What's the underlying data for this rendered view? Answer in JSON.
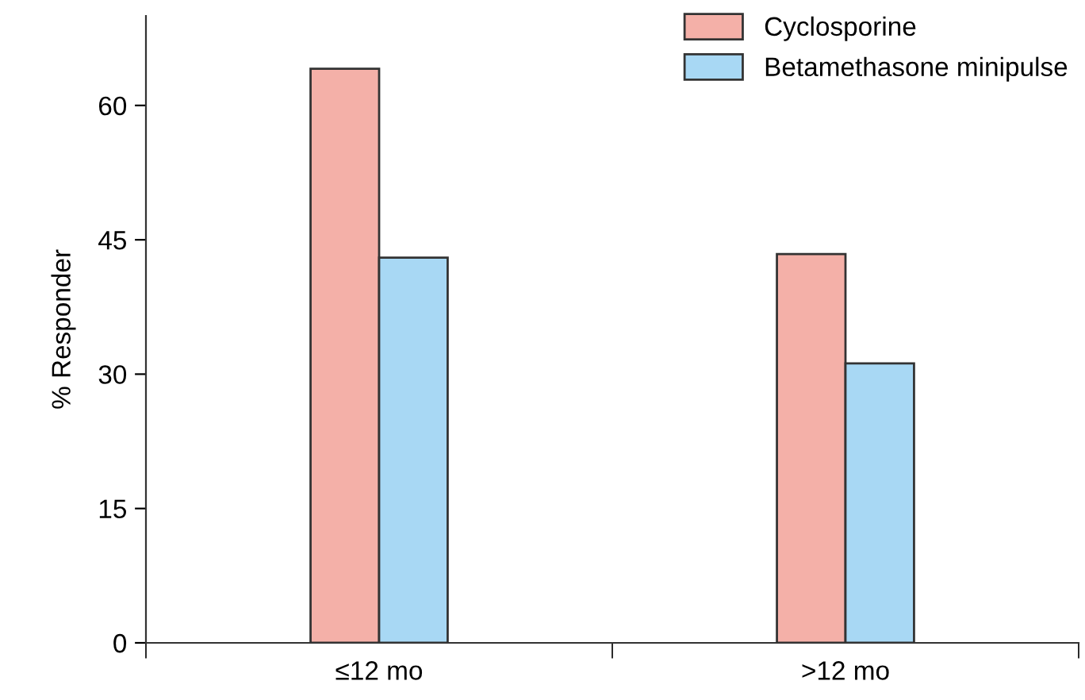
{
  "chart_data": {
    "type": "bar",
    "ylabel": "% Responder",
    "categories": [
      "≤12 mo",
      ">12 mo"
    ],
    "series": [
      {
        "name": "Cyclosporine",
        "color": "#f4b0a8",
        "values": [
          64.1,
          43.4
        ]
      },
      {
        "name": "Betamethasone minipulse",
        "color": "#a8d8f4",
        "values": [
          43.0,
          31.2
        ]
      }
    ],
    "ylim": [
      0,
      70
    ],
    "yticks": [
      0,
      15,
      30,
      45,
      60
    ],
    "grid": false,
    "legend": "top right"
  }
}
